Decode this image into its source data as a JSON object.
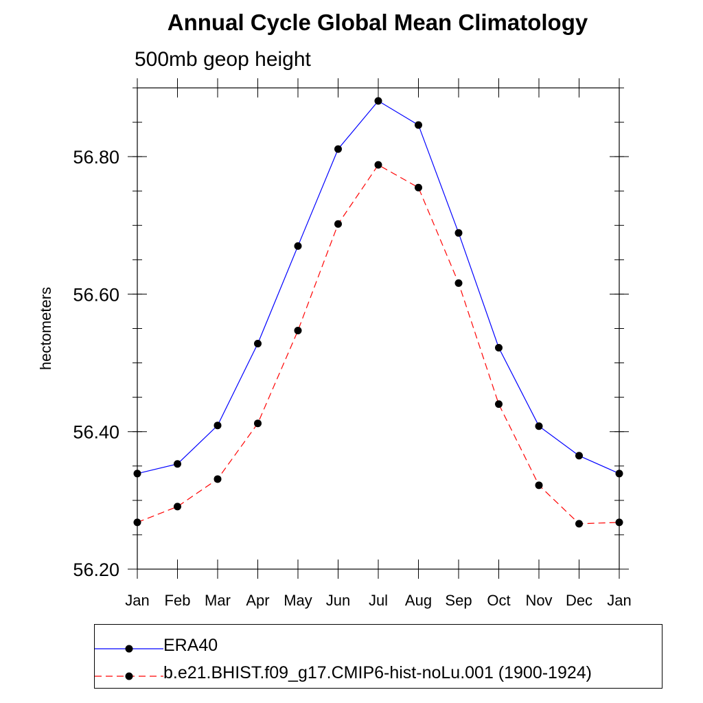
{
  "chart_data": {
    "type": "line",
    "title": "Annual Cycle Global Mean Climatology",
    "subtitle": "500mb geop height",
    "xlabel": "",
    "ylabel": "hectometers",
    "categories": [
      "Jan",
      "Feb",
      "Mar",
      "Apr",
      "May",
      "Jun",
      "Jul",
      "Aug",
      "Sep",
      "Oct",
      "Nov",
      "Dec",
      "Jan"
    ],
    "ylim": [
      56.2,
      56.9
    ],
    "yticks": [
      "56.20",
      "56.40",
      "56.60",
      "56.80"
    ],
    "series": [
      {
        "name": "ERA40",
        "color": "#0000ff",
        "dash": "solid",
        "values": [
          56.339,
          56.353,
          56.409,
          56.528,
          56.67,
          56.811,
          56.881,
          56.846,
          56.689,
          56.522,
          56.408,
          56.365,
          56.339
        ]
      },
      {
        "name": "b.e21.BHIST.f09_g17.CMIP6-hist-noLu.001 (1900-1924)",
        "color": "#ff0000",
        "dash": "dashed",
        "values": [
          56.268,
          56.291,
          56.331,
          56.412,
          56.547,
          56.702,
          56.788,
          56.755,
          56.616,
          56.44,
          56.322,
          56.266,
          56.268
        ]
      }
    ],
    "marker": "filled-circle",
    "marker_color": "#000000"
  }
}
